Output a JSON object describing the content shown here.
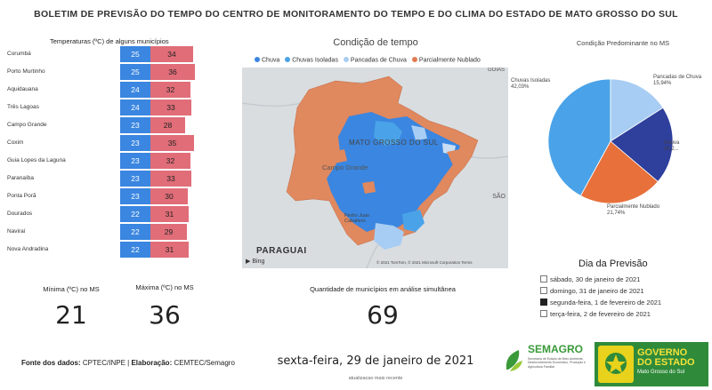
{
  "title": "BOLETIM DE PREVISÃO DO TEMPO DO CENTRO DE MONITORAMENTO DO TEMPO E DO CLIMA DO ESTADO DE MATO GROSSO DO SUL",
  "temperatures": {
    "header": "Temperaturas (ºC) de alguns municípios",
    "max_scale": 40,
    "rows": [
      {
        "city": "Corumbá",
        "min": 25,
        "max": 34
      },
      {
        "city": "Porto Murtinho",
        "min": 25,
        "max": 36
      },
      {
        "city": "Aquidauana",
        "min": 24,
        "max": 32
      },
      {
        "city": "Três Lagoas",
        "min": 24,
        "max": 33
      },
      {
        "city": "Campo Grande",
        "min": 23,
        "max": 28
      },
      {
        "city": "Coxim",
        "min": 23,
        "max": 35
      },
      {
        "city": "Guia Lopes da Laguna",
        "min": 23,
        "max": 32
      },
      {
        "city": "Paranaíba",
        "min": 23,
        "max": 33
      },
      {
        "city": "Ponta Porã",
        "min": 23,
        "max": 30
      },
      {
        "city": "Dourados",
        "min": 22,
        "max": 31
      },
      {
        "city": "Naviraí",
        "min": 22,
        "max": 29
      },
      {
        "city": "Nova Andradina",
        "min": 22,
        "max": 31
      }
    ],
    "colors": {
      "min": "#3a86e0",
      "max": "#e06d78"
    }
  },
  "map": {
    "title": "Condição de tempo",
    "legend": [
      {
        "label": "Chuva",
        "color": "#3a86e0"
      },
      {
        "label": "Chuvas Isoladas",
        "color": "#4aa3e8"
      },
      {
        "label": "Pancadas de Chuva",
        "color": "#a8cdf4"
      },
      {
        "label": "Parcialmente Nublado",
        "color": "#e07c4f"
      }
    ],
    "state_label": "MATO GROSSO DO SUL",
    "city_label": "Campo Grande",
    "city2_label": "Pedro Juan Caballero",
    "country_label": "PARAGUAI",
    "goias_label": "GOIÁS",
    "sao_label": "SÃO",
    "bing": "Bing",
    "attribution": "© 2021 TomTom, © 2021 Microsoft Corporation  Terms"
  },
  "pie": {
    "title": "Condição Predominante no MS",
    "slices": [
      {
        "label": "Chuvas Isoladas",
        "pct": "42,03%",
        "value": 42.03,
        "color": "#4aa3e8"
      },
      {
        "label": "Pancadas de Chuva",
        "pct": "15,94%",
        "value": 15.94,
        "color": "#a8cdf4"
      },
      {
        "label": "Chuva",
        "pct": "20,2...",
        "value": 20.29,
        "color": "#2e3f9c"
      },
      {
        "label": "Parcialmente Nublado",
        "pct": "21,74%",
        "value": 21.74,
        "color": "#e8703a"
      }
    ]
  },
  "stats": {
    "min_label": "Mínima (ºC) no MS",
    "min_value": "21",
    "max_label": "Máxima (ºC) no MS",
    "max_value": "36",
    "count_label": "Quantidade de municípios em análise simultânea",
    "count_value": "69"
  },
  "day_picker": {
    "title": "Dia da Previsão",
    "options": [
      {
        "label": "sábado, 30 de janeiro de 2021",
        "selected": false
      },
      {
        "label": "domingo, 31 de janeiro de 2021",
        "selected": false
      },
      {
        "label": "segunda-feira, 1 de fevereiro de 2021",
        "selected": true
      },
      {
        "label": "terça-feira, 2 de fevereiro de 2021",
        "selected": false
      }
    ]
  },
  "footer": {
    "source_label": "Fonte dos dados:",
    "source_value": " CPTEC/INPE | ",
    "prep_label": "Elaboração:",
    "prep_value": " CEMTEC/Semagro",
    "date": "sexta-feira, 29 de janeiro de 2021",
    "updated": "atualizacao mais recente"
  },
  "logos": {
    "semagro_name": "SEMAGRO",
    "semagro_sub": "Secretaria de Estado de Meio Ambiente, Desenvolvimento Econômico, Produção e Agricultura Familiar",
    "gov_line1": "GOVERNO",
    "gov_line2": "DO ESTADO",
    "gov_line3": "Mato Grosso do Sul"
  }
}
